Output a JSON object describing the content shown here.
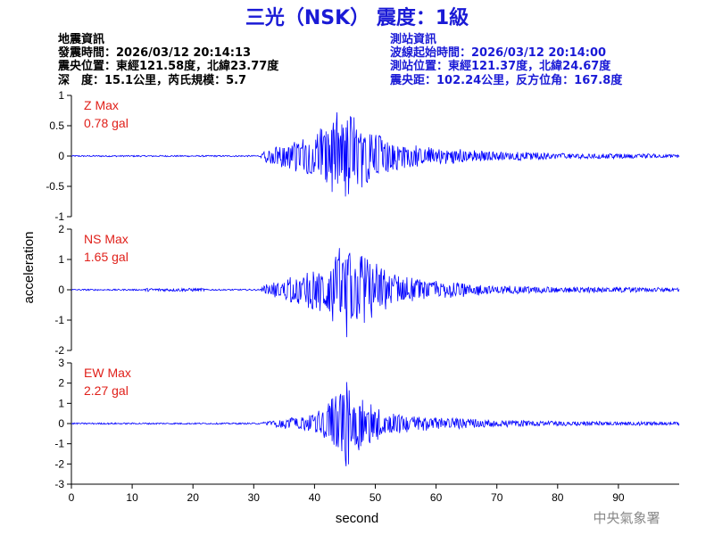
{
  "title": "三光（NSK） 震度：1級",
  "event_info": {
    "heading": "地震資訊",
    "origin_time": "發震時間：2026/03/12 20:14:13",
    "epicenter": "震央位置：東經121.58度，北緯23.77度",
    "depth_magnitude": "深　度：15.1公里，芮氏規模：5.7"
  },
  "station_info": {
    "heading": "測站資訊",
    "wave_start": "波線起始時間：2026/03/12 20:14:00",
    "station_location": "測站位置：東經121.37度，北緯24.67度",
    "distance_azimuth": "震央距：102.24公里，反方位角：167.8度"
  },
  "footer": "中央氣象署",
  "colors": {
    "trace": "#0000ff",
    "title": "#1a1ad6",
    "max_label": "#e0201a"
  },
  "chart_data": {
    "type": "line",
    "xlabel": "second",
    "ylabel": "acceleration",
    "xlim": [
      0,
      100
    ],
    "x_ticks": [
      0,
      10,
      20,
      30,
      40,
      50,
      60,
      70,
      80,
      90
    ],
    "x_tick_labels": [
      "0",
      "10",
      "20",
      "30",
      "40",
      "50",
      "60",
      "70",
      "80",
      "90"
    ],
    "grid": false,
    "panels": [
      {
        "component": "Z",
        "max_label": "Z Max",
        "max_value": "0.78 gal",
        "ylim": [
          -1,
          1
        ],
        "y_ticks": [
          -1,
          -0.5,
          0,
          0.5,
          1
        ],
        "y_tick_labels": [
          "-1",
          "-0.5",
          "0",
          "0.5",
          "1"
        ],
        "envelope": [
          [
            0,
            0.0
          ],
          [
            31,
            0.01
          ],
          [
            32,
            0.1
          ],
          [
            35,
            0.2
          ],
          [
            38,
            0.3
          ],
          [
            40,
            0.4
          ],
          [
            42,
            0.55
          ],
          [
            44,
            0.76
          ],
          [
            46,
            0.7
          ],
          [
            48,
            0.5
          ],
          [
            50,
            0.4
          ],
          [
            52,
            0.3
          ],
          [
            55,
            0.2
          ],
          [
            60,
            0.14
          ],
          [
            70,
            0.08
          ],
          [
            80,
            0.05
          ],
          [
            90,
            0.04
          ],
          [
            100,
            0.03
          ]
        ]
      },
      {
        "component": "NS",
        "max_label": "NS Max",
        "max_value": "1.65 gal",
        "ylim": [
          -2,
          2
        ],
        "y_ticks": [
          -2,
          -1,
          0,
          1,
          2
        ],
        "y_tick_labels": [
          "-2",
          "-1",
          "0",
          "1",
          "2"
        ],
        "envelope": [
          [
            0,
            0.0
          ],
          [
            31,
            0.01
          ],
          [
            32,
            0.18
          ],
          [
            35,
            0.35
          ],
          [
            38,
            0.55
          ],
          [
            40,
            0.65
          ],
          [
            42,
            0.95
          ],
          [
            44,
            1.4
          ],
          [
            45.5,
            1.65
          ],
          [
            47,
            1.25
          ],
          [
            50,
            0.9
          ],
          [
            53,
            0.55
          ],
          [
            56,
            0.4
          ],
          [
            60,
            0.3
          ],
          [
            70,
            0.15
          ],
          [
            80,
            0.1
          ],
          [
            90,
            0.09
          ],
          [
            100,
            0.07
          ]
        ]
      },
      {
        "component": "EW",
        "max_label": "EW Max",
        "max_value": "2.27 gal",
        "ylim": [
          -3,
          3
        ],
        "y_ticks": [
          -3,
          -2,
          -1,
          0,
          1,
          2,
          3
        ],
        "y_tick_labels": [
          "-3",
          "-2",
          "-1",
          "0",
          "1",
          "2",
          "3"
        ],
        "envelope": [
          [
            0,
            0.0
          ],
          [
            31,
            0.01
          ],
          [
            32,
            0.12
          ],
          [
            35,
            0.25
          ],
          [
            38,
            0.35
          ],
          [
            40,
            0.55
          ],
          [
            42,
            0.9
          ],
          [
            44,
            1.8
          ],
          [
            45.5,
            2.27
          ],
          [
            47,
            1.6
          ],
          [
            49,
            1.0
          ],
          [
            52,
            0.65
          ],
          [
            55,
            0.45
          ],
          [
            60,
            0.3
          ],
          [
            70,
            0.18
          ],
          [
            80,
            0.12
          ],
          [
            90,
            0.1
          ],
          [
            100,
            0.08
          ]
        ]
      }
    ]
  }
}
